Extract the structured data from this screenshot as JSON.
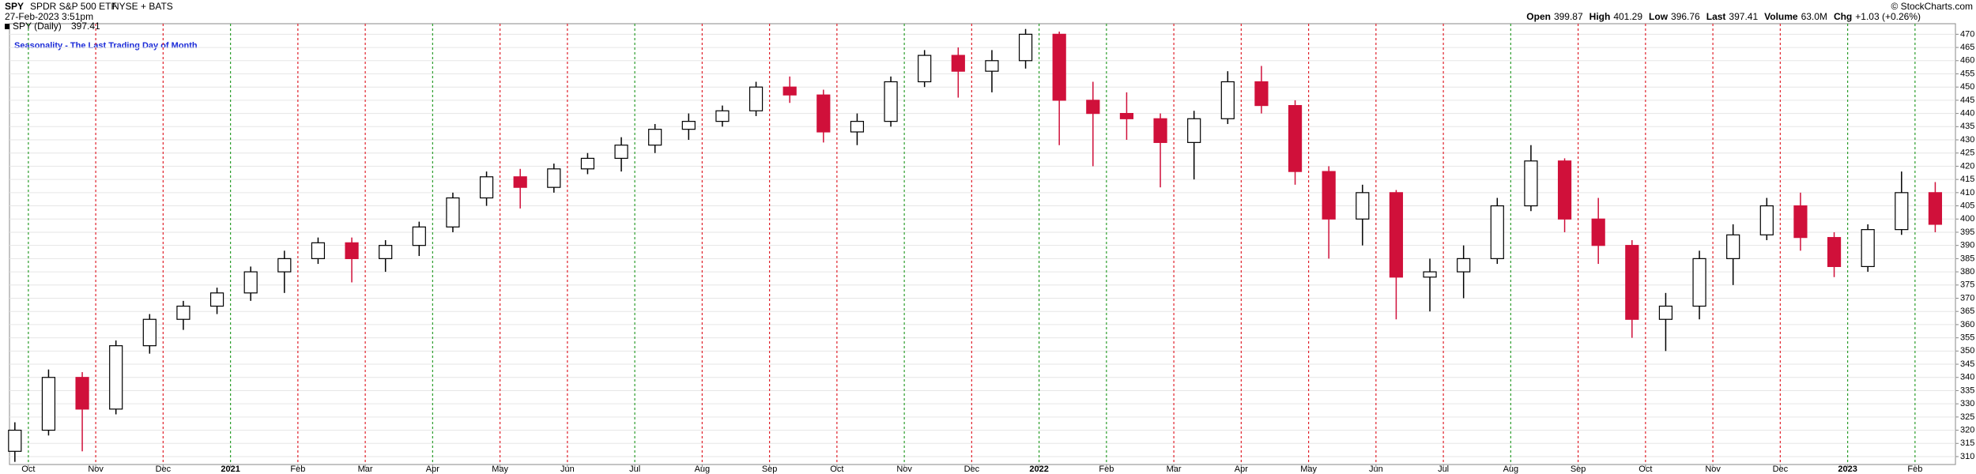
{
  "header": {
    "symbol": "SPY",
    "name": "SPDR S&P 500 ETF",
    "exchange": "NYSE + BATS",
    "datetime": "27-Feb-2023 3:51pm",
    "copyright": "© StockCharts.com",
    "quote": [
      {
        "label": "Open",
        "value": 399.87
      },
      {
        "label": "High",
        "value": 401.29
      },
      {
        "label": "Low",
        "value": 396.76
      },
      {
        "label": "Last",
        "value": 397.41
      },
      {
        "label": "Volume",
        "value": "63.0M"
      },
      {
        "label": "Chg",
        "value": "+1.03 (+0.26%)"
      }
    ]
  },
  "chart_data": {
    "type": "candlestick",
    "title": "Seasonality - The Last Trading Day of Month",
    "legend": {
      "label": "SPY (Daily)",
      "value": 397.41
    },
    "up_color": "#000000",
    "down_color": "#d0103a",
    "x": [
      -0.2,
      0.3,
      0.8,
      1.3,
      1.8,
      2.3,
      2.8,
      3.3,
      3.8,
      4.3,
      4.8,
      5.3,
      5.8,
      6.3,
      6.8,
      7.3,
      7.8,
      8.3,
      8.8,
      9.3,
      9.8,
      10.3,
      10.8,
      11.3,
      11.8,
      12.3,
      12.8,
      13.3,
      13.8,
      14.3,
      14.8,
      15.3,
      15.8,
      16.3,
      16.8,
      17.3,
      17.8,
      18.3,
      18.8,
      19.3,
      19.8,
      20.3,
      20.8,
      21.3,
      21.8,
      22.3,
      22.8,
      23.3,
      23.8,
      24.3,
      24.8,
      25.3,
      25.8,
      26.3,
      26.8,
      27.3,
      27.8,
      28.3
    ],
    "open": [
      312,
      320,
      340,
      328,
      352,
      362,
      367,
      372,
      380,
      385,
      391,
      385,
      390,
      397,
      408,
      416,
      412,
      419,
      423,
      428,
      434,
      437,
      441,
      450,
      447,
      433,
      437,
      452,
      462,
      456,
      460,
      470,
      445,
      440,
      438,
      429,
      438,
      452,
      443,
      418,
      400,
      410,
      378,
      380,
      385,
      405,
      422,
      400,
      390,
      362,
      367,
      385,
      394,
      405,
      393,
      382,
      396,
      410
    ],
    "high": [
      323,
      343,
      342,
      354,
      364,
      369,
      374,
      382,
      388,
      393,
      393,
      392,
      399,
      410,
      418,
      419,
      421,
      425,
      431,
      436,
      440,
      443,
      452,
      454,
      449,
      440,
      454,
      464,
      465,
      464,
      472,
      471,
      452,
      448,
      440,
      441,
      456,
      458,
      445,
      420,
      413,
      411,
      385,
      390,
      408,
      428,
      423,
      408,
      392,
      372,
      388,
      398,
      408,
      410,
      395,
      398,
      418,
      414
    ],
    "low": [
      308,
      318,
      312,
      326,
      349,
      358,
      364,
      369,
      372,
      383,
      376,
      380,
      386,
      395,
      405,
      404,
      410,
      417,
      418,
      425,
      430,
      435,
      439,
      444,
      429,
      428,
      435,
      450,
      446,
      448,
      457,
      428,
      420,
      430,
      412,
      415,
      436,
      440,
      413,
      385,
      390,
      362,
      365,
      370,
      383,
      403,
      395,
      383,
      355,
      350,
      362,
      375,
      392,
      388,
      378,
      380,
      394,
      395
    ],
    "close": [
      320,
      340,
      328,
      352,
      362,
      367,
      372,
      380,
      385,
      391,
      385,
      390,
      397,
      408,
      416,
      412,
      419,
      423,
      428,
      434,
      437,
      441,
      450,
      447,
      433,
      437,
      452,
      462,
      456,
      460,
      470,
      445,
      440,
      438,
      429,
      438,
      452,
      443,
      418,
      400,
      410,
      378,
      380,
      385,
      405,
      422,
      400,
      390,
      362,
      367,
      385,
      394,
      405,
      393,
      382,
      396,
      410,
      398
    ],
    "xlim": [
      -0.28,
      28.6
    ],
    "ylim": [
      307,
      474
    ],
    "xticks": [
      {
        "value": 0,
        "label": "Oct"
      },
      {
        "value": 1,
        "label": "Nov"
      },
      {
        "value": 2,
        "label": "Dec"
      },
      {
        "value": 3,
        "label": "2021"
      },
      {
        "value": 4,
        "label": "Feb"
      },
      {
        "value": 5,
        "label": "Mar"
      },
      {
        "value": 6,
        "label": "Apr"
      },
      {
        "value": 7,
        "label": "May"
      },
      {
        "value": 8,
        "label": "Jun"
      },
      {
        "value": 9,
        "label": "Jul"
      },
      {
        "value": 10,
        "label": "Aug"
      },
      {
        "value": 11,
        "label": "Sep"
      },
      {
        "value": 12,
        "label": "Oct"
      },
      {
        "value": 13,
        "label": "Nov"
      },
      {
        "value": 14,
        "label": "Dec"
      },
      {
        "value": 15,
        "label": "2022"
      },
      {
        "value": 16,
        "label": "Feb"
      },
      {
        "value": 17,
        "label": "Mar"
      },
      {
        "value": 18,
        "label": "Apr"
      },
      {
        "value": 19,
        "label": "May"
      },
      {
        "value": 20,
        "label": "Jun"
      },
      {
        "value": 21,
        "label": "Jul"
      },
      {
        "value": 22,
        "label": "Aug"
      },
      {
        "value": 23,
        "label": "Sep"
      },
      {
        "value": 24,
        "label": "Oct"
      },
      {
        "value": 25,
        "label": "Nov"
      },
      {
        "value": 26,
        "label": "Dec"
      },
      {
        "value": 27,
        "label": "2023"
      },
      {
        "value": 28,
        "label": "Feb"
      }
    ],
    "xtick_line_colors": [
      "#2a9d2a",
      "#e0202a",
      "#e0202a",
      "#2a9d2a",
      "#e0202a",
      "#e0202a",
      "#2a9d2a",
      "#e0202a",
      "#e0202a",
      "#2a9d2a",
      "#e0202a",
      "#e0202a",
      "#e0202a",
      "#2a9d2a",
      "#e0202a",
      "#2a9d2a",
      "#2a9d2a",
      "#e0202a",
      "#e0202a",
      "#e0202a",
      "#e0202a",
      "#e0202a",
      "#2a9d2a",
      "#e0202a",
      "#e0202a",
      "#e0202a",
      "#e0202a",
      "#2a9d2a",
      "#2a9d2a"
    ],
    "yticks": [
      310,
      315,
      320,
      325,
      330,
      335,
      340,
      345,
      350,
      355,
      360,
      365,
      370,
      375,
      380,
      385,
      390,
      395,
      400,
      405,
      410,
      415,
      420,
      425,
      430,
      435,
      440,
      445,
      450,
      455,
      460,
      465,
      470
    ],
    "grid": true
  }
}
